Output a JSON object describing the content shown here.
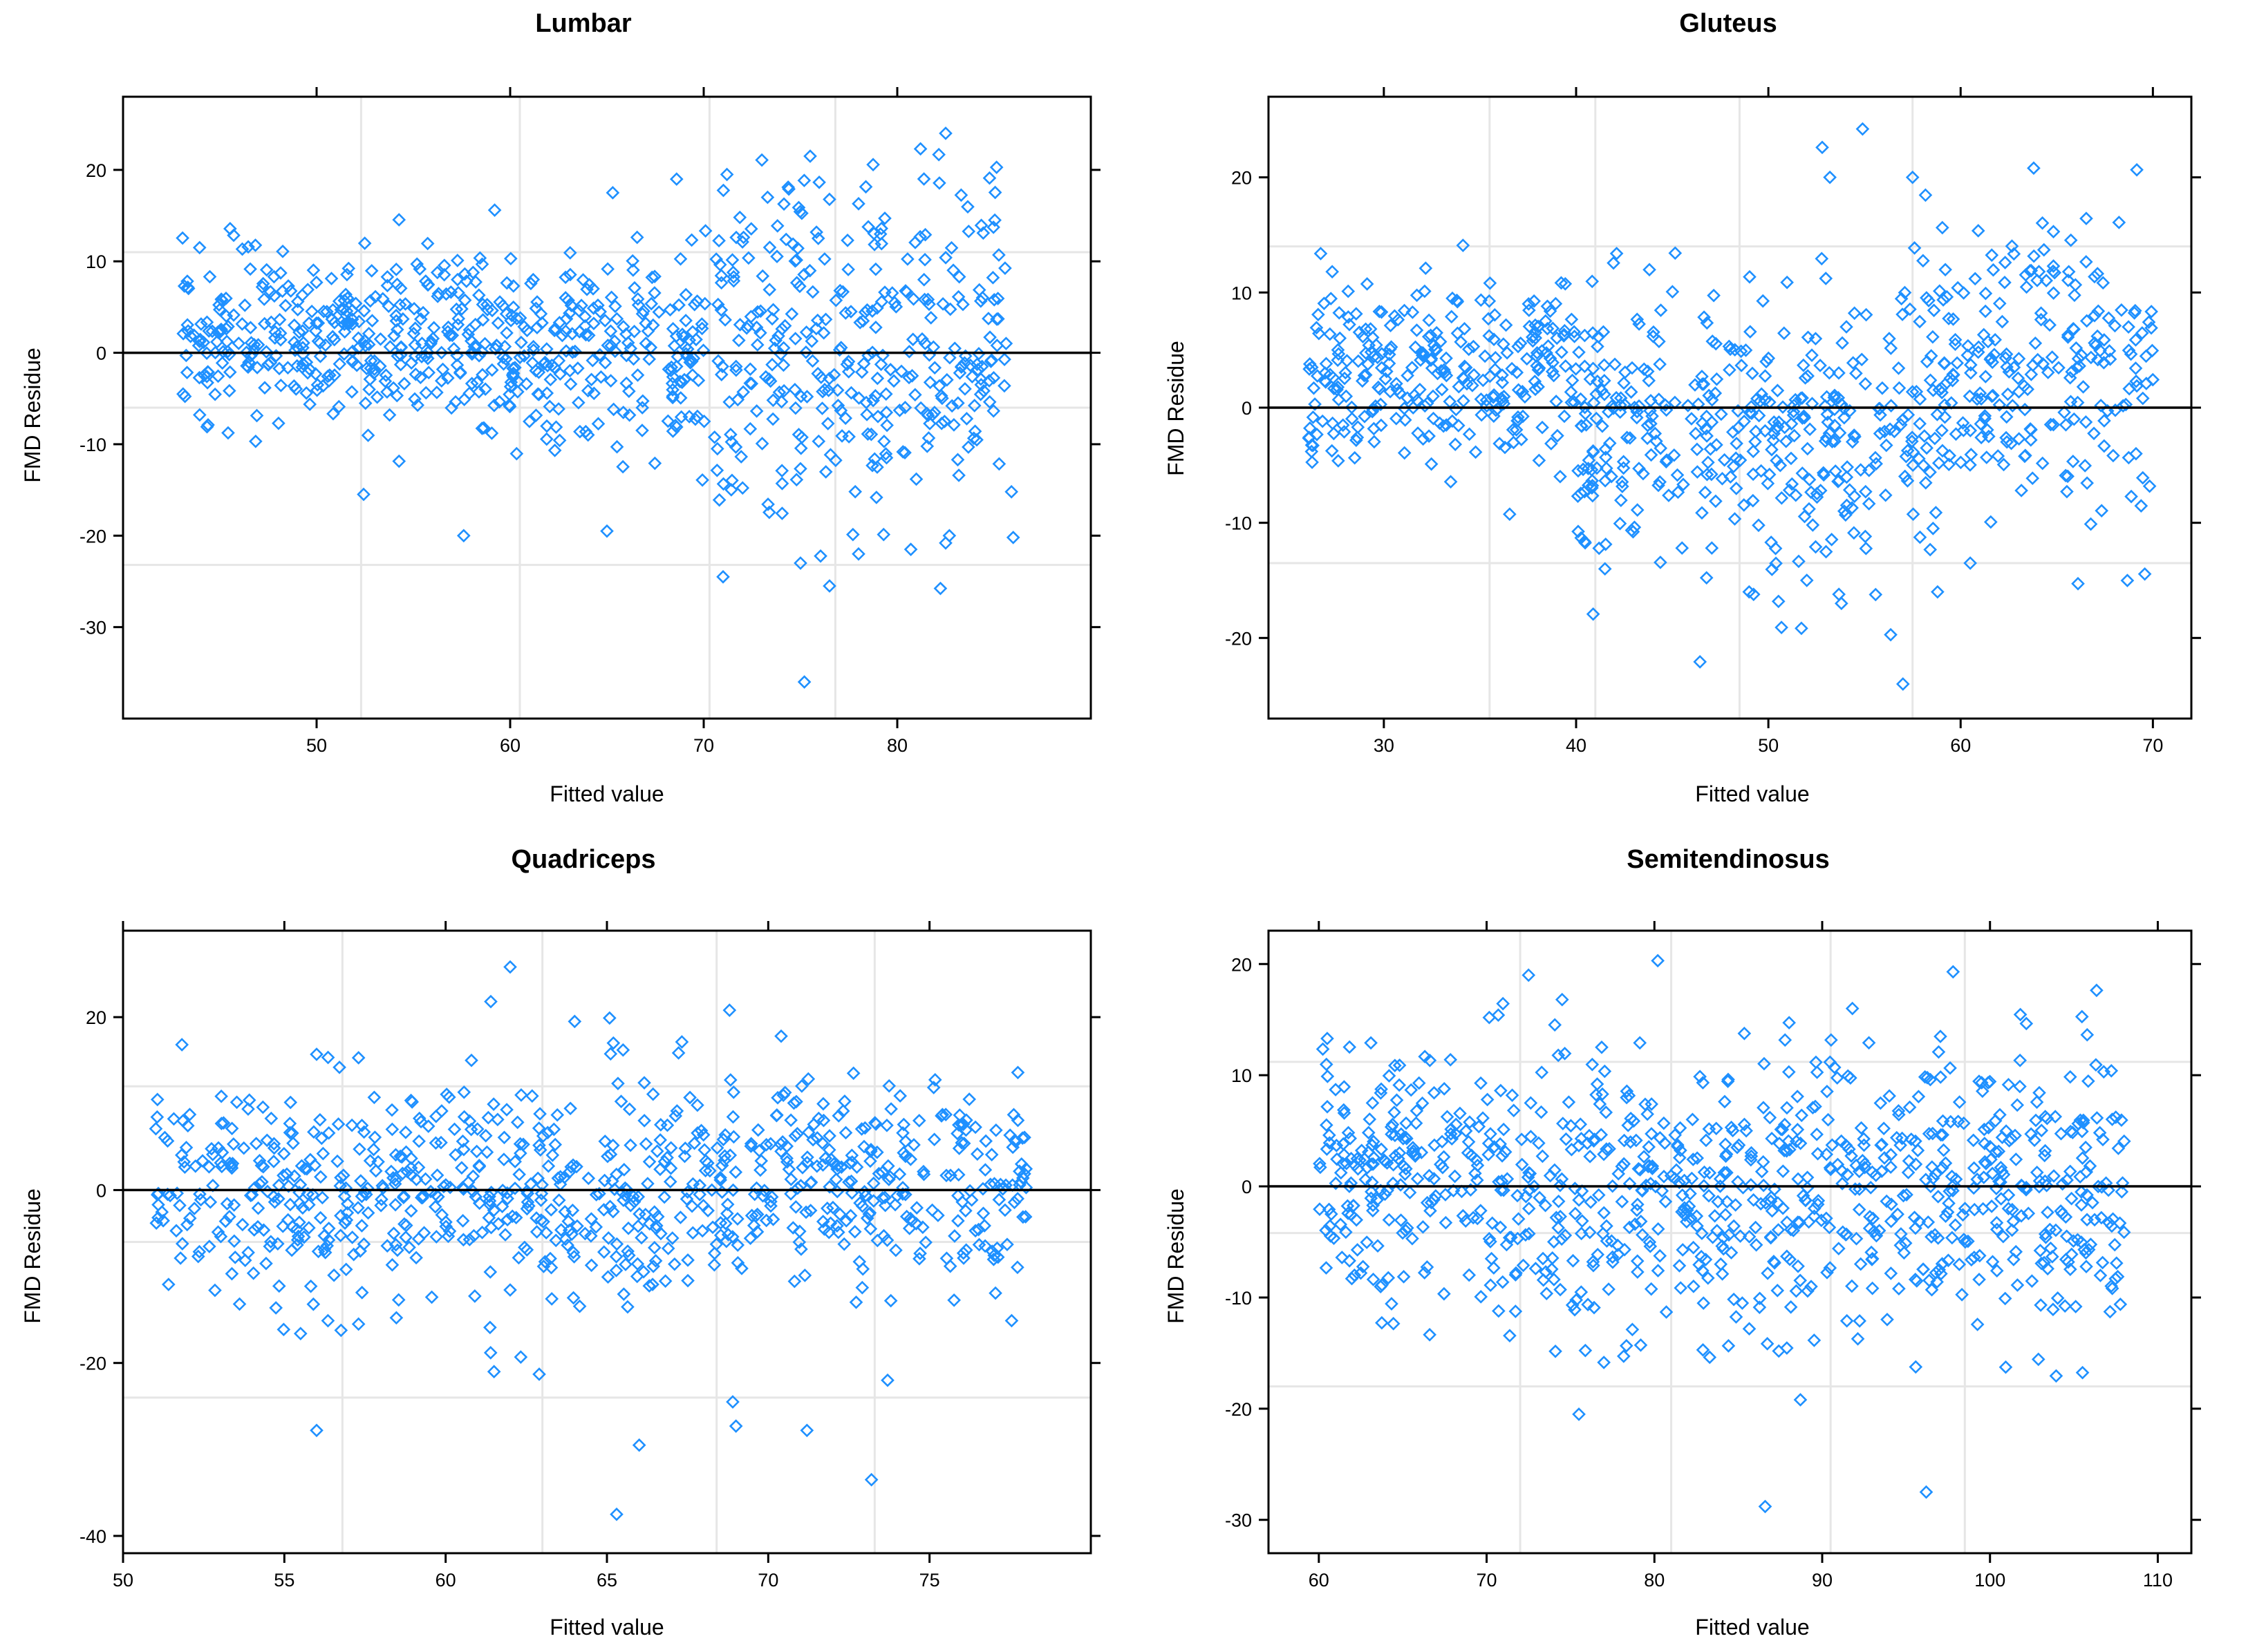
{
  "colors": {
    "point": "#1e90ff",
    "grid": "#e6e6e6",
    "axis": "#000000"
  },
  "chart_data": [
    {
      "type": "scatter",
      "title": "Lumbar",
      "xlabel": "Fitted value",
      "ylabel": "FMD Residue",
      "xlim": [
        40,
        90
      ],
      "ylim": [
        -40,
        28
      ],
      "xticks": [
        50,
        60,
        70,
        80
      ],
      "yticks": [
        -30,
        -20,
        -10,
        0,
        10,
        20
      ],
      "xgrid": [
        52.3,
        60.5,
        70.3,
        76.8
      ],
      "ygrid": [
        -23.2,
        -6,
        11
      ],
      "refline": 0,
      "n_points": 900,
      "cloud": [
        [
          43,
          58,
          1.5,
          4.5
        ],
        [
          58,
          70,
          0,
          5.5
        ],
        [
          70,
          86,
          1,
          9
        ]
      ],
      "seed": 11,
      "outliers": [
        [
          75.2,
          -36
        ],
        [
          76.5,
          -25.5
        ],
        [
          71,
          -24.5
        ],
        [
          75,
          -23
        ],
        [
          78,
          -22
        ],
        [
          80.7,
          -21.5
        ],
        [
          82.5,
          -20.8
        ],
        [
          57.6,
          -20
        ],
        [
          65,
          -19.5
        ],
        [
          85.9,
          -15.2
        ],
        [
          82.5,
          24
        ],
        [
          81.2,
          22.3
        ],
        [
          75.5,
          21.5
        ],
        [
          71.2,
          19.5
        ],
        [
          65.3,
          17.5
        ],
        [
          73.3,
          17
        ],
        [
          78,
          16.3
        ],
        [
          59.2,
          15.6
        ]
      ]
    },
    {
      "type": "scatter",
      "title": "Gluteus",
      "xlabel": "Fitted value",
      "ylabel": "FMD Residue",
      "xlim": [
        24,
        72
      ],
      "ylim": [
        -27,
        27
      ],
      "xticks": [
        30,
        40,
        50,
        60,
        70
      ],
      "yticks": [
        -20,
        -10,
        0,
        10,
        20
      ],
      "xgrid": [
        35.5,
        41,
        48.5,
        57.5
      ],
      "ygrid": [
        -13.5,
        0,
        14
      ],
      "refline": 0,
      "n_points": 900,
      "cloud": [
        [
          26,
          40,
          2.5,
          4
        ],
        [
          40,
          58,
          -2.5,
          6
        ],
        [
          58,
          70,
          3,
          6
        ]
      ],
      "seed": 23,
      "outliers": [
        [
          57,
          -24
        ],
        [
          53.8,
          -17
        ],
        [
          58.8,
          -16
        ],
        [
          49,
          -16
        ],
        [
          52,
          -15
        ],
        [
          54.9,
          24.2
        ],
        [
          52.8,
          22.6
        ],
        [
          63.8,
          20.8
        ],
        [
          53.2,
          20
        ],
        [
          57.5,
          20
        ],
        [
          60.5,
          -13.5
        ],
        [
          41.5,
          -14
        ]
      ]
    },
    {
      "type": "scatter",
      "title": "Quadriceps",
      "xlabel": "Fitted value",
      "ylabel": "FMD Residue",
      "xlim": [
        50,
        80
      ],
      "ylim": [
        -42,
        30
      ],
      "xticks": [
        50,
        55,
        60,
        65,
        70,
        75
      ],
      "yticks": [
        -40,
        -20,
        0,
        20
      ],
      "xgrid": [
        56.8,
        63,
        68.4,
        73.3
      ],
      "ygrid": [
        -24,
        -6,
        12
      ],
      "refline": 0,
      "n_points": 800,
      "cloud": [
        [
          51,
          59,
          0,
          6
        ],
        [
          59,
          68,
          0,
          6.5
        ],
        [
          68,
          78,
          1,
          5.5
        ]
      ],
      "seed": 37,
      "outliers": [
        [
          65.3,
          -37.5
        ],
        [
          73.2,
          -33.5
        ],
        [
          66,
          -29.5
        ],
        [
          56,
          -27.8
        ],
        [
          71.2,
          -27.8
        ],
        [
          69,
          -27.3
        ],
        [
          68.9,
          -24.5
        ],
        [
          73.7,
          -22
        ],
        [
          61.5,
          -21
        ],
        [
          62.9,
          -21.3
        ],
        [
          62,
          25.8
        ],
        [
          61.4,
          21.8
        ],
        [
          68.8,
          20.8
        ],
        [
          64,
          19.5
        ],
        [
          70.4,
          17.8
        ],
        [
          65.2,
          17
        ],
        [
          65.5,
          16.2
        ],
        [
          56,
          15.7
        ],
        [
          57.3,
          15.3
        ],
        [
          60.8,
          15
        ],
        [
          73.8,
          -12.8
        ],
        [
          57.3,
          -15.5
        ],
        [
          55.9,
          -13.2
        ]
      ]
    },
    {
      "type": "scatter",
      "title": "Semitendinosus",
      "xlabel": "Fitted value",
      "ylabel": "FMD Residue",
      "xlim": [
        57,
        112
      ],
      "ylim": [
        -33,
        23
      ],
      "xticks": [
        60,
        70,
        80,
        90,
        100,
        110
      ],
      "yticks": [
        -30,
        -20,
        -10,
        0,
        10,
        20
      ],
      "xgrid": [
        72,
        81,
        90.5,
        98.5
      ],
      "ygrid": [
        -18,
        -4.2,
        11.2
      ],
      "refline": 0,
      "n_points": 900,
      "cloud": [
        [
          60,
          70,
          1,
          5
        ],
        [
          70,
          108,
          -0.5,
          6.5
        ]
      ],
      "seed": 53,
      "outliers": [
        [
          86.6,
          -28.8
        ],
        [
          96.2,
          -27.5
        ],
        [
          75.5,
          -20.5
        ],
        [
          88.7,
          -19.2
        ],
        [
          80.2,
          20.3
        ],
        [
          97.8,
          19.3
        ],
        [
          72.5,
          19
        ],
        [
          74.5,
          16.8
        ],
        [
          91.8,
          16
        ],
        [
          60.5,
          13.3
        ],
        [
          61,
          8.7
        ],
        [
          62.5,
          -7.8
        ],
        [
          63.2,
          7.5
        ]
      ]
    }
  ]
}
